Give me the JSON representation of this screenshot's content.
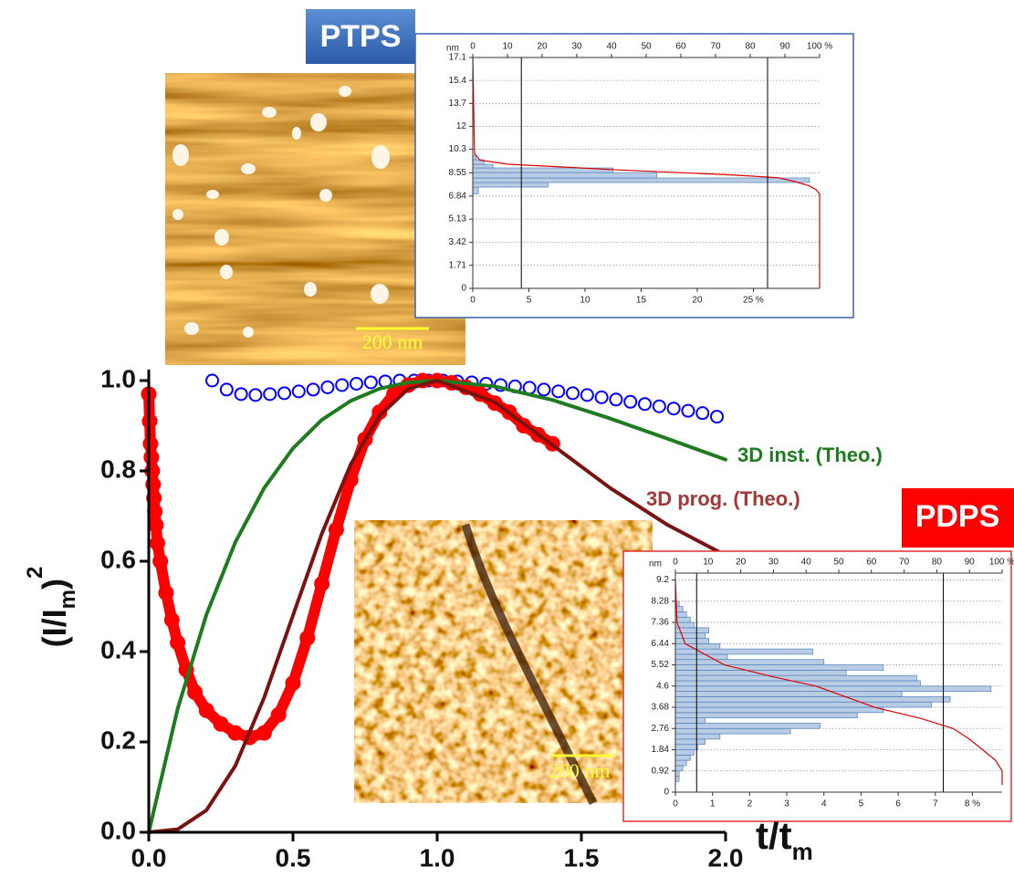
{
  "chart_data": [
    {
      "type": "line",
      "xlabel": [
        "t/t",
        "m"
      ],
      "ylabel": [
        "(I/I",
        "m",
        ")",
        "2"
      ],
      "xlim": [
        0,
        2
      ],
      "ylim": [
        0,
        1
      ],
      "xticks": [
        {
          "value": 0,
          "label": "0.0"
        },
        {
          "value": 0.5,
          "label": "0.5"
        },
        {
          "value": 1,
          "label": "1.0"
        },
        {
          "value": 1.5,
          "label": "1.5"
        },
        {
          "value": 2,
          "label": "2.0"
        }
      ],
      "yticks": [
        {
          "value": 0,
          "label": "0.0"
        },
        {
          "value": 0.2,
          "label": "0.2"
        },
        {
          "value": 0.4,
          "label": "0.4"
        },
        {
          "value": 0.6,
          "label": "0.6"
        },
        {
          "value": 0.8,
          "label": "0.8"
        },
        {
          "value": 1,
          "label": "1.0"
        }
      ],
      "series": [
        {
          "color": "#0000ff",
          "style": "markers",
          "x": [
            0.22,
            0.27,
            0.32,
            0.37,
            0.42,
            0.47,
            0.52,
            0.57,
            0.62,
            0.67,
            0.72,
            0.77,
            0.82,
            0.87,
            0.92,
            0.97,
            1.02,
            1.07,
            1.12,
            1.17,
            1.22,
            1.27,
            1.32,
            1.37,
            1.42,
            1.47,
            1.52,
            1.57,
            1.62,
            1.67,
            1.72,
            1.77,
            1.82,
            1.87,
            1.92,
            1.97
          ],
          "values": [
            1.0,
            0.98,
            0.97,
            0.968,
            0.97,
            0.972,
            0.976,
            0.98,
            0.985,
            0.99,
            0.993,
            0.996,
            0.998,
            1.0,
            1.0,
            1.0,
            1.0,
            0.998,
            0.996,
            0.993,
            0.99,
            0.987,
            0.984,
            0.98,
            0.976,
            0.972,
            0.968,
            0.963,
            0.958,
            0.953,
            0.948,
            0.943,
            0.938,
            0.933,
            0.928,
            0.92
          ]
        },
        {
          "color": "#ff0000",
          "style": "markers+line",
          "x": [
            0,
            0.003,
            0.006,
            0.009,
            0.012,
            0.015,
            0.018,
            0.021,
            0.025,
            0.03,
            0.04,
            0.06,
            0.08,
            0.1,
            0.13,
            0.16,
            0.2,
            0.25,
            0.3,
            0.35,
            0.4,
            0.45,
            0.5,
            0.55,
            0.6,
            0.65,
            0.7,
            0.75,
            0.8,
            0.85,
            0.9,
            0.95,
            1.0,
            1.05,
            1.1,
            1.15,
            1.2,
            1.25,
            1.3,
            1.35,
            1.4
          ],
          "values": [
            0.97,
            0.91,
            0.86,
            0.83,
            0.8,
            0.77,
            0.74,
            0.71,
            0.68,
            0.64,
            0.6,
            0.53,
            0.47,
            0.42,
            0.36,
            0.31,
            0.27,
            0.24,
            0.22,
            0.21,
            0.22,
            0.26,
            0.33,
            0.43,
            0.55,
            0.67,
            0.78,
            0.87,
            0.93,
            0.97,
            0.99,
            1.0,
            1.0,
            0.995,
            0.985,
            0.97,
            0.95,
            0.93,
            0.9,
            0.88,
            0.86
          ]
        },
        {
          "name": "3D inst. (Theo.)",
          "color": "#1e7b1e",
          "style": "line",
          "x": [
            0,
            0.1,
            0.2,
            0.3,
            0.4,
            0.5,
            0.6,
            0.7,
            0.8,
            0.9,
            1.0,
            1.2,
            1.4,
            1.6,
            1.8,
            2.0
          ],
          "values": [
            0,
            0.273,
            0.482,
            0.642,
            0.762,
            0.85,
            0.913,
            0.955,
            0.982,
            0.996,
            1.0,
            0.987,
            0.957,
            0.916,
            0.871,
            0.825
          ]
        },
        {
          "name": "3D prog. (Theo.)",
          "color": "#7b1212",
          "style": "line",
          "x": [
            0,
            0.1,
            0.2,
            0.3,
            0.4,
            0.5,
            0.6,
            0.7,
            0.8,
            0.9,
            1.0,
            1.2,
            1.4,
            1.6,
            1.8,
            2.0
          ],
          "values": [
            0,
            0.0065,
            0.0488,
            0.147,
            0.298,
            0.48,
            0.661,
            0.814,
            0.922,
            0.982,
            1.0,
            0.952,
            0.857,
            0.762,
            0.68,
            0.613
          ]
        }
      ]
    },
    {
      "type": "histogram",
      "orientation": "horizontal",
      "title": "PTPS",
      "scale_bar_label": "200 nm",
      "ylabel": "nm",
      "ylim": [
        0,
        17.1
      ],
      "yticks": [
        0,
        1.71,
        3.42,
        5.13,
        6.84,
        8.55,
        10.3,
        12,
        13.7,
        15.4,
        17.1
      ],
      "xlim": [
        0,
        30.9
      ],
      "xticks": [
        0,
        5,
        10,
        15,
        20,
        {
          "value": 25,
          "label": "25 %"
        }
      ],
      "x2lim": [
        0,
        100
      ],
      "x2ticks": [
        0,
        10,
        20,
        30,
        40,
        50,
        60,
        70,
        80,
        90,
        {
          "value": 100,
          "label": "100 %"
        }
      ],
      "grid": true,
      "color": "#b8cce4",
      "bins": [
        7.0,
        7.5,
        7.84,
        8.18,
        8.58,
        8.92,
        9.19,
        9.53,
        9.86
      ],
      "values": [
        0.5,
        6.7,
        30,
        16.4,
        12.5,
        1.8,
        1.0,
        0.3
      ],
      "cumulative": {
        "color": "#e00000",
        "percent": [
          0,
          0.5,
          2,
          10,
          40,
          75,
          88,
          93,
          97,
          99,
          100,
          100
        ],
        "nm": [
          17.1,
          10.0,
          9.5,
          9.2,
          8.8,
          8.4,
          8.2,
          7.9,
          7.6,
          7.3,
          7.0,
          0
        ]
      },
      "vlines": [
        14,
        85
      ]
    },
    {
      "type": "histogram",
      "orientation": "horizontal",
      "title": "PDPS",
      "scale_bar_label": "200 nm",
      "ylabel": "nm",
      "ylim": [
        0,
        9.5
      ],
      "yticks": [
        0,
        0.92,
        1.84,
        2.76,
        3.68,
        4.6,
        5.52,
        6.44,
        7.36,
        8.28,
        9.2
      ],
      "xlim": [
        0,
        8.8
      ],
      "xticks": [
        0,
        1,
        2,
        3,
        4,
        5,
        6,
        7,
        {
          "value": 8,
          "label": "8 %"
        }
      ],
      "x2lim": [
        0,
        100
      ],
      "x2ticks": [
        0,
        10,
        20,
        30,
        40,
        50,
        60,
        70,
        80,
        90,
        {
          "value": 100,
          "label": "100 %"
        }
      ],
      "grid": true,
      "color": "#b8cce4",
      "bins": [
        0.46,
        0.69,
        0.92,
        1.15,
        1.38,
        1.61,
        1.84,
        2.07,
        2.3,
        2.53,
        2.76,
        2.99,
        3.22,
        3.45,
        3.68,
        3.91,
        4.14,
        4.37,
        4.6,
        4.83,
        5.06,
        5.29,
        5.52,
        5.75,
        5.98,
        6.21,
        6.44,
        6.67,
        6.9,
        7.13,
        7.36,
        7.59,
        7.82,
        8.05,
        8.28
      ],
      "values": [
        0.1,
        0.1,
        0.2,
        0.3,
        0.4,
        0.5,
        0.6,
        0.8,
        1.2,
        3.1,
        3.9,
        0.8,
        4.9,
        5.6,
        6.9,
        7.4,
        6.1,
        8.5,
        6.6,
        6.5,
        4.6,
        5.6,
        4.0,
        1.4,
        3.7,
        1.2,
        0.9,
        0.8,
        0.9,
        0.5,
        0.4,
        0.3,
        0.2,
        0.1
      ],
      "cumulative": {
        "color": "#e00000",
        "percent": [
          0,
          0.5,
          3,
          15,
          30,
          43,
          61,
          75,
          85,
          90,
          94,
          98,
          100,
          100
        ],
        "nm": [
          9.2,
          7.36,
          6.44,
          5.52,
          5.0,
          4.6,
          3.68,
          3.2,
          2.76,
          2.3,
          1.84,
          1.38,
          0.92,
          0.3
        ]
      },
      "vlines": [
        6.5,
        82
      ]
    }
  ]
}
